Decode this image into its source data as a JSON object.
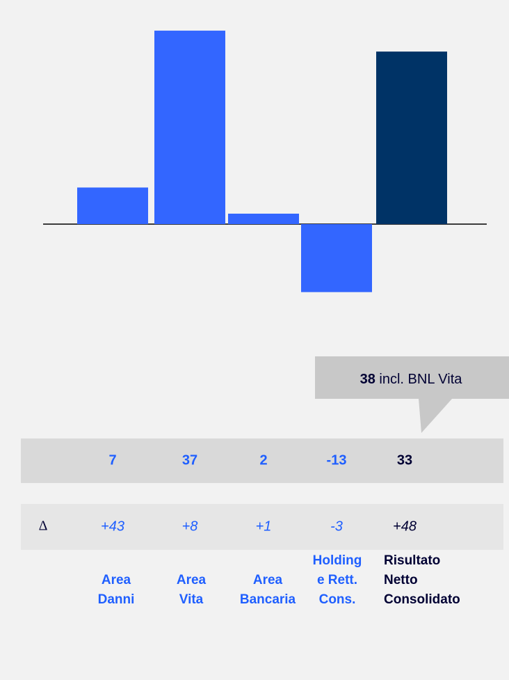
{
  "chart_data": {
    "type": "bar",
    "categories": [
      [
        "Area",
        "Danni"
      ],
      [
        "Area",
        "Vita"
      ],
      [
        "Area",
        "Bancaria"
      ],
      [
        "Holding",
        "e Rett.",
        "Cons."
      ],
      [
        "Risultato",
        "Netto",
        "Consolidato"
      ]
    ],
    "values": [
      7,
      37,
      2,
      -13,
      33
    ],
    "colors": [
      "#3366ff",
      "#3366ff",
      "#3366ff",
      "#3366ff",
      "#003366"
    ],
    "label_colors": [
      "#1f5fff",
      "#1f5fff",
      "#1f5fff",
      "#1f5fff",
      "#000033"
    ],
    "ylim": [
      -15,
      40
    ],
    "delta_symbol": "Δ",
    "deltas": [
      43,
      8,
      1,
      -3,
      48
    ],
    "delta_labels": [
      "+43",
      "+8",
      "+1",
      "-3",
      "+48"
    ],
    "annotation": {
      "value": 38,
      "label": "incl. BNL Vita"
    }
  }
}
